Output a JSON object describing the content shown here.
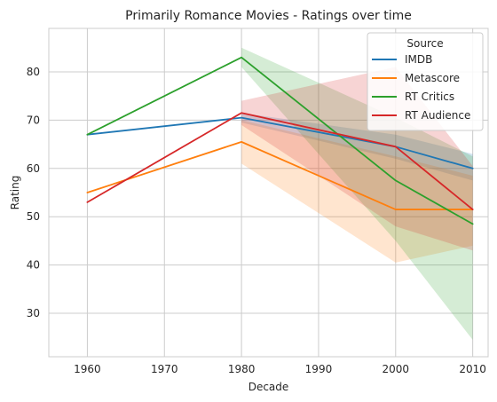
{
  "chart_data": {
    "type": "line",
    "title": "Primarily Romance Movies - Ratings over time",
    "xlabel": "Decade",
    "ylabel": "Rating",
    "x": [
      1960,
      1980,
      2000,
      2010
    ],
    "xlim": [
      1955,
      2012
    ],
    "ylim": [
      21,
      89
    ],
    "xticks": [
      1960,
      1970,
      1980,
      1990,
      2000,
      2010
    ],
    "yticks": [
      30,
      40,
      50,
      60,
      70,
      80
    ],
    "grid": true,
    "legend": {
      "title": "Source",
      "placement": "top-right"
    },
    "series": [
      {
        "name": "IMDB",
        "color": "#1f77b4",
        "values": [
          67,
          70.5,
          64.5,
          60
        ],
        "ci_low": [
          null,
          69.5,
          62,
          57.5
        ],
        "ci_high": [
          null,
          71.5,
          67,
          63
        ]
      },
      {
        "name": "Metascore",
        "color": "#ff7f0e",
        "values": [
          55,
          65.5,
          51.5,
          51.5
        ],
        "ci_low": [
          null,
          61,
          40.5,
          44
        ],
        "ci_high": [
          null,
          70,
          62.5,
          58.5
        ]
      },
      {
        "name": "RT Critics",
        "color": "#2ca02c",
        "values": [
          67,
          83,
          57.5,
          48.5
        ],
        "ci_low": [
          null,
          81,
          45,
          24.5
        ],
        "ci_high": [
          null,
          85,
          70.5,
          62.5
        ]
      },
      {
        "name": "RT Audience",
        "color": "#d62728",
        "values": [
          53,
          71.5,
          64.5,
          51.5
        ],
        "ci_low": [
          null,
          69,
          48,
          43
        ],
        "ci_high": [
          null,
          74,
          81,
          60.5
        ]
      }
    ]
  }
}
